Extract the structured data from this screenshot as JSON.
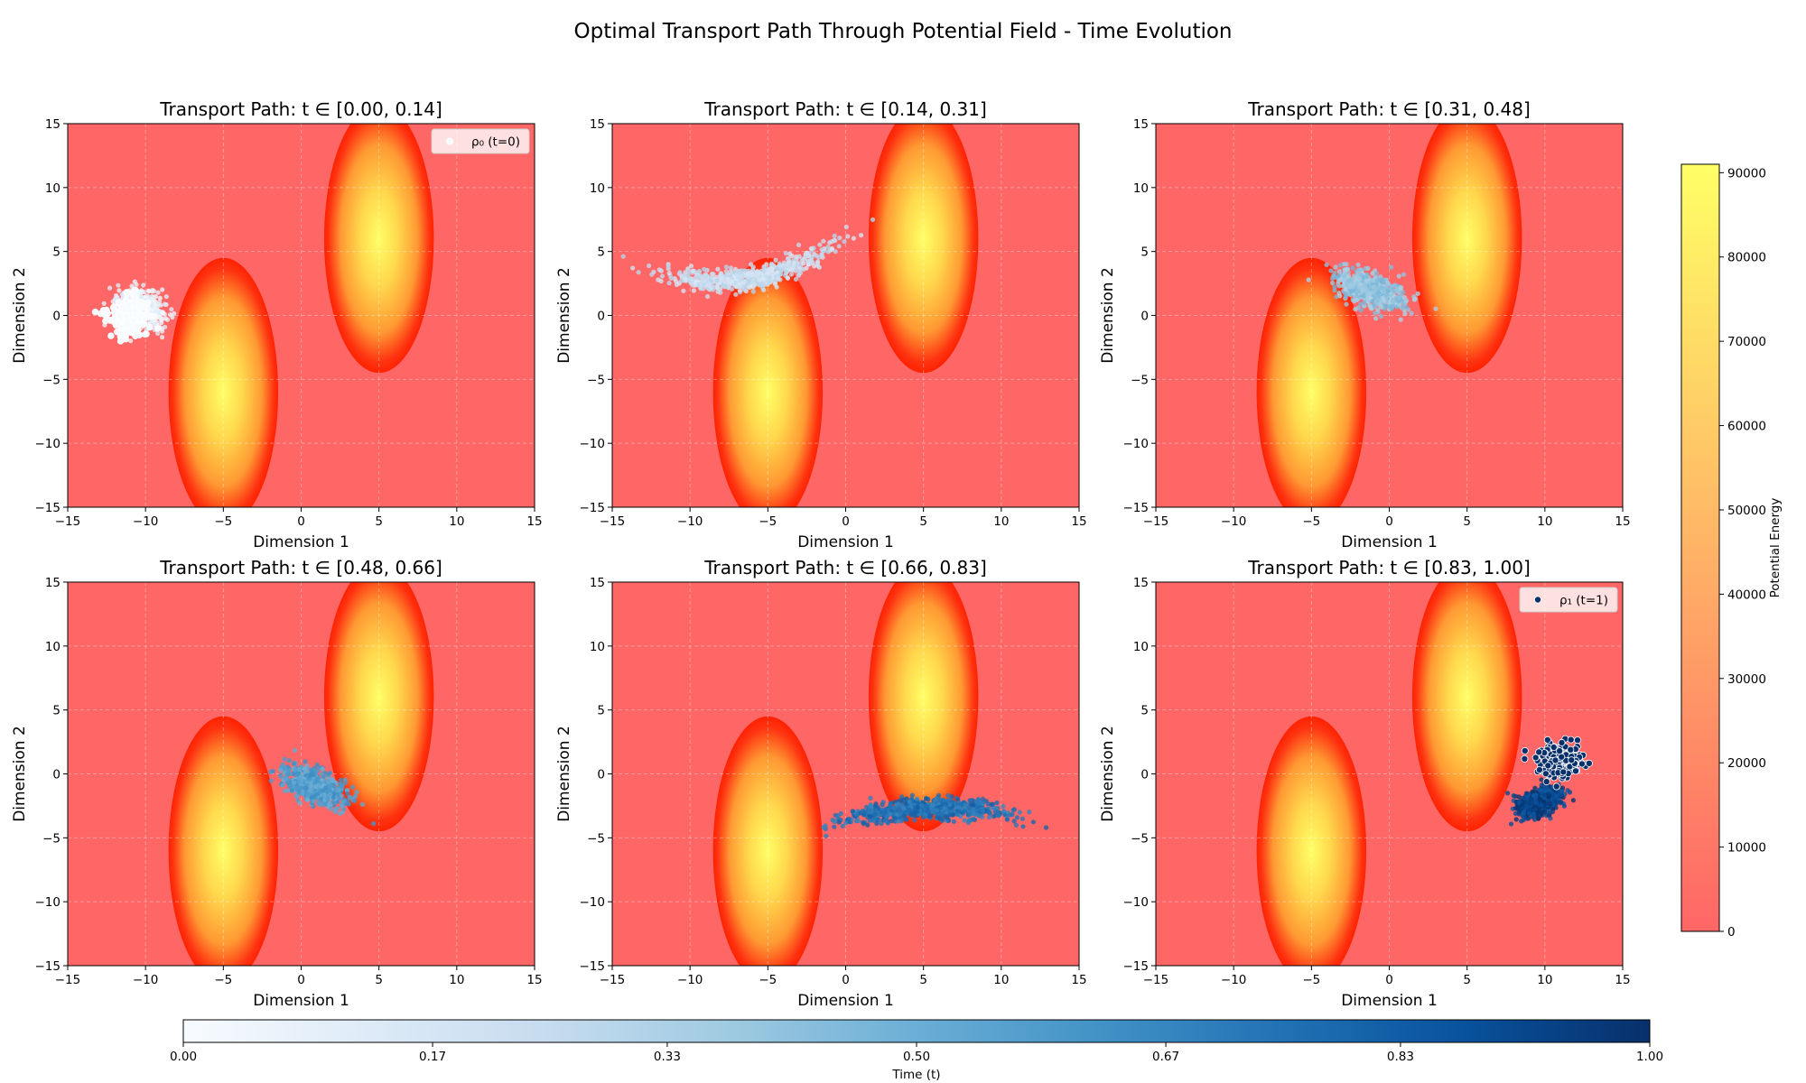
{
  "chart_data": {
    "type": "scatter",
    "title": "Optimal Transport Path Through Potential Field - Time Evolution",
    "panels": [
      {
        "title": "Transport Path: t ∈ [0.00, 0.14]",
        "t_range": [
          0.0,
          0.14
        ],
        "cloud": {
          "center": [
            -10.5,
            0.5
          ],
          "spread": [
            1.2,
            1.4
          ],
          "tilt": 0.9,
          "curve": 0,
          "t": 0.07
        },
        "legend": {
          "label": "ρ₀ (t=0)",
          "color": "#f7fbff",
          "position": "upper right"
        }
      },
      {
        "title": "Transport Path: t ∈ [0.14, 0.31]",
        "t_range": [
          0.14,
          0.31
        ],
        "cloud": {
          "center": [
            -6.0,
            2.9
          ],
          "spread": [
            4.6,
            0.75
          ],
          "tilt": 0.22,
          "curve": -0.045,
          "t": 0.22
        }
      },
      {
        "title": "Transport Path: t ∈ [0.31, 0.48]",
        "t_range": [
          0.31,
          0.48
        ],
        "cloud": {
          "center": [
            -1.2,
            2.0
          ],
          "spread": [
            2.1,
            1.1
          ],
          "tilt": -0.45,
          "curve": 0,
          "t": 0.4
        }
      },
      {
        "title": "Transport Path: t ∈ [0.48, 0.66]",
        "t_range": [
          0.48,
          0.66
        ],
        "cloud": {
          "center": [
            0.9,
            -1.0
          ],
          "spread": [
            2.0,
            1.0
          ],
          "tilt": -0.55,
          "curve": 0,
          "t": 0.57
        }
      },
      {
        "title": "Transport Path: t ∈ [0.66, 0.83]",
        "t_range": [
          0.66,
          0.83
        ],
        "cloud": {
          "center": [
            5.0,
            -2.7
          ],
          "spread": [
            4.9,
            0.75
          ],
          "tilt": 0.05,
          "curve": 0.025,
          "t": 0.74
        }
      },
      {
        "title": "Transport Path: t ∈ [0.83, 1.00]",
        "t_range": [
          0.83,
          1.0
        ],
        "cloud": {
          "center": [
            9.6,
            -2.2
          ],
          "spread": [
            1.3,
            0.8
          ],
          "tilt": 0.5,
          "curve": 0,
          "t": 0.92
        },
        "target": {
          "center": [
            11.0,
            1.0
          ],
          "spread": [
            1.0,
            0.9
          ]
        },
        "legend": {
          "label": "ρ₁ (t=1)",
          "color": "#08306b",
          "position": "upper right"
        }
      }
    ],
    "x_axis": {
      "label": "Dimension 1",
      "range": [
        -15,
        15
      ],
      "ticks": [
        -15,
        -10,
        -5,
        0,
        5,
        10,
        15
      ]
    },
    "y_axis": {
      "label": "Dimension 2",
      "range": [
        -15,
        15
      ],
      "ticks": [
        -15,
        -10,
        -5,
        0,
        5,
        10,
        15
      ]
    },
    "grid": true,
    "potential_obstacles": [
      {
        "center": [
          -5,
          -6
        ],
        "sigma": [
          1.5,
          6
        ],
        "peak": 91000
      },
      {
        "center": [
          5,
          6
        ],
        "sigma": [
          1.5,
          6
        ],
        "peak": 91000
      }
    ],
    "potential_colorbar": {
      "label": "Potential Energy",
      "range": [
        0,
        91000
      ],
      "ticks": [
        0,
        10000,
        20000,
        30000,
        40000,
        50000,
        60000,
        70000,
        80000,
        90000
      ],
      "colormap": "autumn_r",
      "alpha": 0.6,
      "colors": [
        "#ff6666",
        "#ffff66"
      ]
    },
    "time_colorbar": {
      "label": "Time (t)",
      "range": [
        0,
        1
      ],
      "ticks": [
        "0.00",
        "0.17",
        "0.33",
        "0.50",
        "0.67",
        "0.83",
        "1.00"
      ],
      "colormap": "Blues",
      "colors": [
        "#f7fbff",
        "#08306b"
      ]
    }
  }
}
